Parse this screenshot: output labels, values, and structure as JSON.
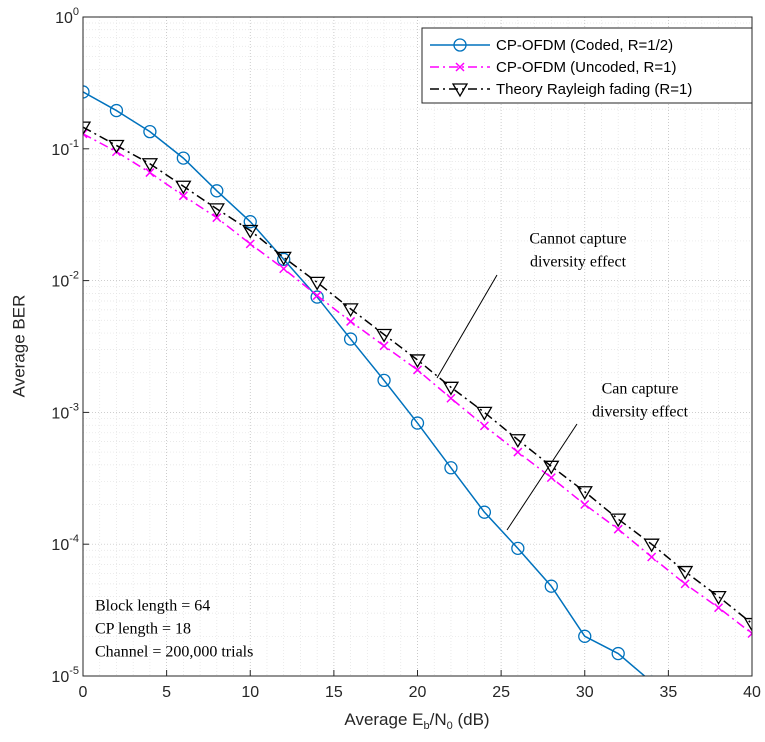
{
  "chart_data": {
    "type": "line",
    "xlabel": "Average E_b/N_0 (dB)",
    "ylabel": "Average BER",
    "xlim": [
      0,
      40
    ],
    "xticks": [
      0,
      5,
      10,
      15,
      20,
      25,
      30,
      35,
      40
    ],
    "ylim": [
      1e-05,
      1
    ],
    "yticks": [
      {
        "value": 1e-05,
        "label": "10^-5"
      },
      {
        "value": 0.0001,
        "label": "10^-4"
      },
      {
        "value": 0.001,
        "label": "10^-3"
      },
      {
        "value": 0.01,
        "label": "10^-2"
      },
      {
        "value": 0.1,
        "label": "10^-1"
      },
      {
        "value": 1,
        "label": "10^0"
      }
    ],
    "y_scale": "log",
    "grid": true,
    "minor_grid": true,
    "legend_position": "upper right",
    "series": [
      {
        "name": "CP-OFDM (Coded, R=1/2)",
        "color": "#0072bd",
        "marker": "circle",
        "line_style": "solid",
        "x": [
          0,
          2,
          4,
          6,
          8,
          10,
          12,
          14,
          16,
          18,
          20,
          22,
          24,
          26,
          28,
          30,
          32,
          34
        ],
        "values": [
          0.27,
          0.195,
          0.135,
          0.085,
          0.048,
          0.028,
          0.0145,
          0.0075,
          0.0036,
          0.00175,
          0.00083,
          0.00038,
          0.000175,
          9.3e-05,
          4.8e-05,
          2e-05,
          1.48e-05,
          9e-06
        ]
      },
      {
        "name": "CP-OFDM (Uncoded, R=1)",
        "color": "#ff00ff",
        "marker": "x",
        "line_style": "dashdot",
        "x": [
          0,
          2,
          4,
          6,
          8,
          10,
          12,
          14,
          16,
          18,
          20,
          22,
          24,
          26,
          28,
          30,
          32,
          34,
          36,
          38,
          40
        ],
        "values": [
          0.13,
          0.095,
          0.066,
          0.044,
          0.03,
          0.019,
          0.0123,
          0.0077,
          0.0049,
          0.0032,
          0.0021,
          0.00128,
          0.00079,
          0.0005,
          0.00032,
          0.0002,
          0.00013,
          8e-05,
          5e-05,
          3.3e-05,
          2.1e-05
        ]
      },
      {
        "name": "Theory Rayleigh fading (R=1)",
        "color": "#000000",
        "marker": "triangle-down",
        "line_style": "dashdot",
        "x": [
          0,
          2,
          4,
          6,
          8,
          10,
          12,
          14,
          16,
          18,
          20,
          22,
          24,
          26,
          28,
          30,
          32,
          34,
          36,
          38,
          40
        ],
        "values": [
          0.146,
          0.106,
          0.077,
          0.052,
          0.035,
          0.024,
          0.015,
          0.0097,
          0.0061,
          0.0039,
          0.0025,
          0.00155,
          0.001,
          0.00062,
          0.00039,
          0.00025,
          0.000155,
          0.0001,
          6.2e-05,
          4e-05,
          2.5e-05
        ]
      }
    ],
    "annotations": [
      {
        "lines": [
          "Cannot capture",
          "diversity effect"
        ]
      },
      {
        "lines": [
          "Can capture",
          "diversity effect"
        ]
      }
    ],
    "info_box": [
      "Block length = 64",
      "CP length = 18",
      "Channel = 200,000 trials"
    ]
  }
}
